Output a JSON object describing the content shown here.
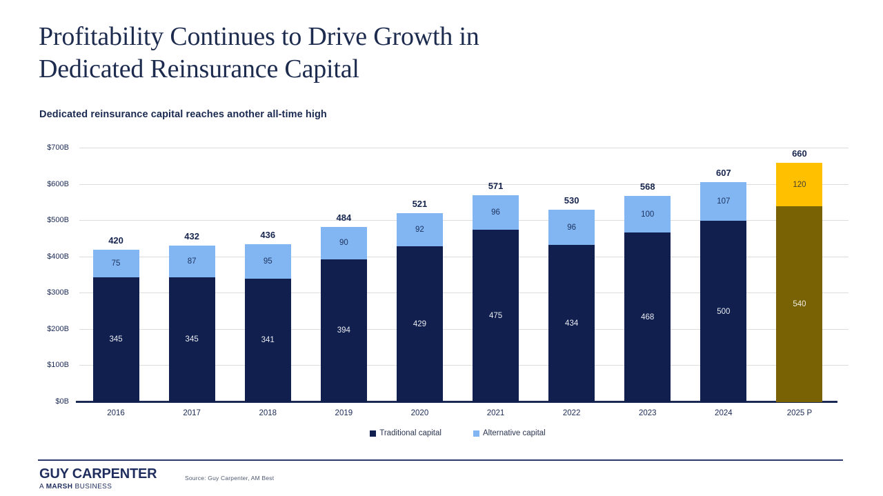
{
  "slide": {
    "title_line1": "Profitability Continues to Drive Growth in",
    "title_line2": "Dedicated Reinsurance Capital",
    "subtitle": "Dedicated reinsurance capital reaches another all-time high"
  },
  "chart_data": {
    "type": "bar",
    "stacked": true,
    "title": "Dedicated reinsurance capital reaches another all-time high",
    "categories": [
      "2016",
      "2017",
      "2018",
      "2019",
      "2020",
      "2021",
      "2022",
      "2023",
      "2024",
      "2025 P"
    ],
    "series": [
      {
        "name": "Traditional capital",
        "values": [
          345,
          345,
          341,
          394,
          429,
          475,
          434,
          468,
          500,
          540
        ],
        "color": "#101f4e",
        "forecast_color": "#786203",
        "label_color": "#e9ebf1",
        "forecast_label_color": "#efece0"
      },
      {
        "name": "Alternative capital",
        "values": [
          75,
          87,
          95,
          90,
          92,
          96,
          96,
          100,
          107,
          120
        ],
        "color": "#82b6f3",
        "forecast_color": "#ffc000",
        "label_color": "#1f3460",
        "forecast_label_color": "#474132"
      }
    ],
    "totals": [
      420,
      432,
      436,
      484,
      521,
      571,
      530,
      568,
      607,
      660
    ],
    "forecast_category_index": 9,
    "y_ticks": [
      "$0B",
      "$100B",
      "$200B",
      "$300B",
      "$400B",
      "$500B",
      "$600B",
      "$700B"
    ],
    "y_tick_step": 100,
    "ylim": [
      0,
      700
    ],
    "grid": "horizontal",
    "legend_position": "bottom",
    "total_label_color": "#16254e",
    "axis_color": "#1b2a55",
    "gridline_color": "#dcdcdc"
  },
  "legend": {
    "items": [
      {
        "label": "Traditional capital",
        "color": "#101f4e"
      },
      {
        "label": "Alternative capital",
        "color": "#82b6f3"
      }
    ]
  },
  "footer": {
    "logo_line1": "GUY CARPENTER",
    "logo_line2_prefix": "A ",
    "logo_line2_bold": "MARSH",
    "logo_line2_suffix": " BUSINESS",
    "source": "Source: Guy Carpenter, AM Best"
  }
}
